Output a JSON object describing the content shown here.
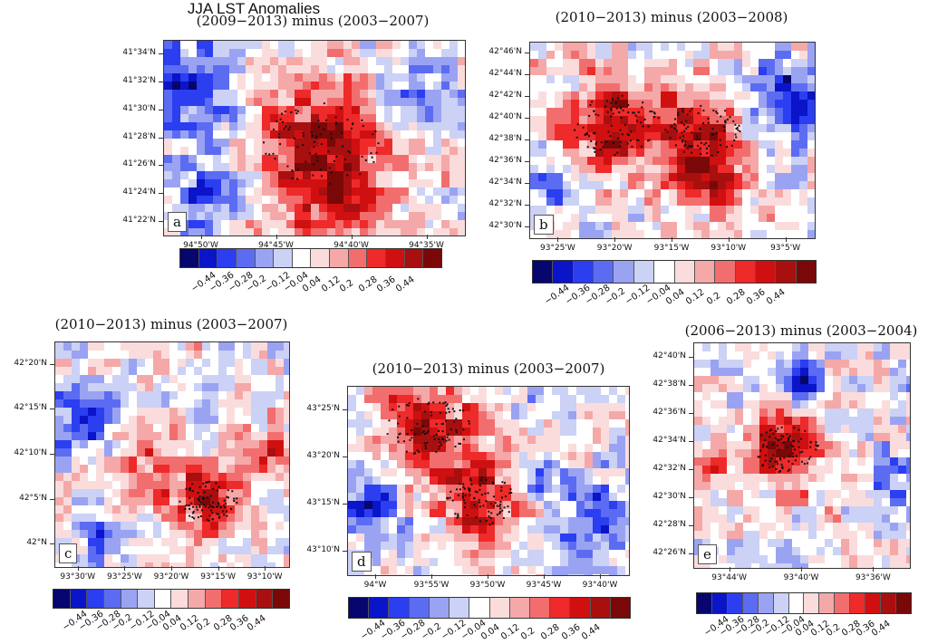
{
  "figure": {
    "title": "JJA LST Anomalies"
  },
  "colorscale": {
    "colors": [
      "#06066e",
      "#0a14c8",
      "#2b3ef0",
      "#5b6cf2",
      "#9aa3f2",
      "#ccd1f6",
      "#ffffff",
      "#fbdcdc",
      "#f5a8a8",
      "#f26e6e",
      "#ee2a2a",
      "#d01010",
      "#a80f0f",
      "#7a0808"
    ],
    "labels": [
      "−0.44",
      "−0.36",
      "−0.28",
      "−0.2",
      "−0.12",
      "−0.04",
      "0.04",
      "0.12",
      "0.2",
      "0.28",
      "0.36",
      "0.44"
    ]
  },
  "chart_data": [
    {
      "type": "heatmap",
      "panel": "a",
      "title": "(2009−2013) minus (2003−2007)",
      "y_ticks": [
        "41°34'N",
        "41°32'N",
        "41°30'N",
        "41°28'N",
        "41°26'N",
        "41°24'N",
        "41°22'N"
      ],
      "x_ticks": [
        "94°50'W",
        "94°45'W",
        "94°40'W",
        "94°35'W"
      ],
      "value_range": [
        -0.44,
        0.44
      ],
      "hotspots": [
        {
          "cx": 0.52,
          "cy": 0.52,
          "r": 0.22,
          "value": 0.44
        },
        {
          "cx": 0.57,
          "cy": 0.82,
          "r": 0.12,
          "value": 0.3
        },
        {
          "cx": 0.1,
          "cy": 0.25,
          "r": 0.16,
          "value": -0.3
        },
        {
          "cx": 0.14,
          "cy": 0.8,
          "r": 0.1,
          "value": -0.36
        },
        {
          "cx": 0.85,
          "cy": 0.25,
          "r": 0.15,
          "value": -0.2
        }
      ]
    },
    {
      "type": "heatmap",
      "panel": "b",
      "title": "(2010−2013) minus (2003−2008)",
      "y_ticks": [
        "42°46'N",
        "42°44'N",
        "42°42'N",
        "42°40'N",
        "42°38'N",
        "42°36'N",
        "42°34'N",
        "42°32'N",
        "42°30'N"
      ],
      "x_ticks": [
        "93°25'W",
        "93°20'W",
        "93°15'W",
        "93°10'W",
        "93°5'W"
      ],
      "value_range": [
        -0.44,
        0.44
      ],
      "hotspots": [
        {
          "cx": 0.3,
          "cy": 0.42,
          "r": 0.17,
          "value": 0.44
        },
        {
          "cx": 0.6,
          "cy": 0.45,
          "r": 0.15,
          "value": 0.44
        },
        {
          "cx": 0.62,
          "cy": 0.72,
          "r": 0.12,
          "value": 0.3
        },
        {
          "cx": 0.9,
          "cy": 0.3,
          "r": 0.13,
          "value": -0.4
        },
        {
          "cx": 0.08,
          "cy": 0.75,
          "r": 0.1,
          "value": -0.2
        }
      ]
    },
    {
      "type": "heatmap",
      "panel": "c",
      "title": "(2010−2013) minus (2003−2007)",
      "y_ticks": [
        "42°20'N",
        "42°15'N",
        "42°10'N",
        "42°5'N",
        "42°N"
      ],
      "x_ticks": [
        "93°30'W",
        "93°25'W",
        "93°20'W",
        "93°15'W",
        "93°10'W"
      ],
      "value_range": [
        -0.44,
        0.44
      ],
      "hotspots": [
        {
          "cx": 0.65,
          "cy": 0.7,
          "r": 0.14,
          "value": 0.4
        },
        {
          "cx": 0.4,
          "cy": 0.55,
          "r": 0.16,
          "value": 0.28
        },
        {
          "cx": 0.93,
          "cy": 0.5,
          "r": 0.1,
          "value": 0.36
        },
        {
          "cx": 0.1,
          "cy": 0.35,
          "r": 0.15,
          "value": -0.3
        },
        {
          "cx": 0.2,
          "cy": 0.85,
          "r": 0.1,
          "value": -0.2
        }
      ]
    },
    {
      "type": "heatmap",
      "panel": "d",
      "title": "(2010−2013) minus (2003−2007)",
      "y_ticks": [
        "43°25'N",
        "43°20'N",
        "43°15'N",
        "43°10'N"
      ],
      "x_ticks": [
        "94°W",
        "93°55'W",
        "93°50'W",
        "93°45'W",
        "93°40'W"
      ],
      "value_range": [
        -0.44,
        0.44
      ],
      "hotspots": [
        {
          "cx": 0.28,
          "cy": 0.2,
          "r": 0.17,
          "value": 0.44
        },
        {
          "cx": 0.47,
          "cy": 0.6,
          "r": 0.14,
          "value": 0.4
        },
        {
          "cx": 0.68,
          "cy": 0.45,
          "r": 0.06,
          "value": -0.36
        },
        {
          "cx": 0.88,
          "cy": 0.7,
          "r": 0.13,
          "value": -0.28
        },
        {
          "cx": 0.08,
          "cy": 0.6,
          "r": 0.12,
          "value": -0.3
        }
      ]
    },
    {
      "type": "heatmap",
      "panel": "e",
      "title": "(2006−2013) minus (2003−2004)",
      "y_ticks": [
        "42°40'N",
        "42°38'N",
        "42°36'N",
        "42°34'N",
        "42°32'N",
        "42°30'N",
        "42°28'N",
        "42°26'N"
      ],
      "x_ticks": [
        "93°44'W",
        "93°40'W",
        "93°36'W"
      ],
      "value_range": [
        -0.44,
        0.44
      ],
      "hotspots": [
        {
          "cx": 0.42,
          "cy": 0.47,
          "r": 0.17,
          "value": 0.44
        },
        {
          "cx": 0.5,
          "cy": 0.18,
          "r": 0.09,
          "value": -0.44
        },
        {
          "cx": 0.9,
          "cy": 0.6,
          "r": 0.12,
          "value": -0.2
        },
        {
          "cx": 0.1,
          "cy": 0.55,
          "r": 0.1,
          "value": 0.2
        }
      ]
    }
  ]
}
